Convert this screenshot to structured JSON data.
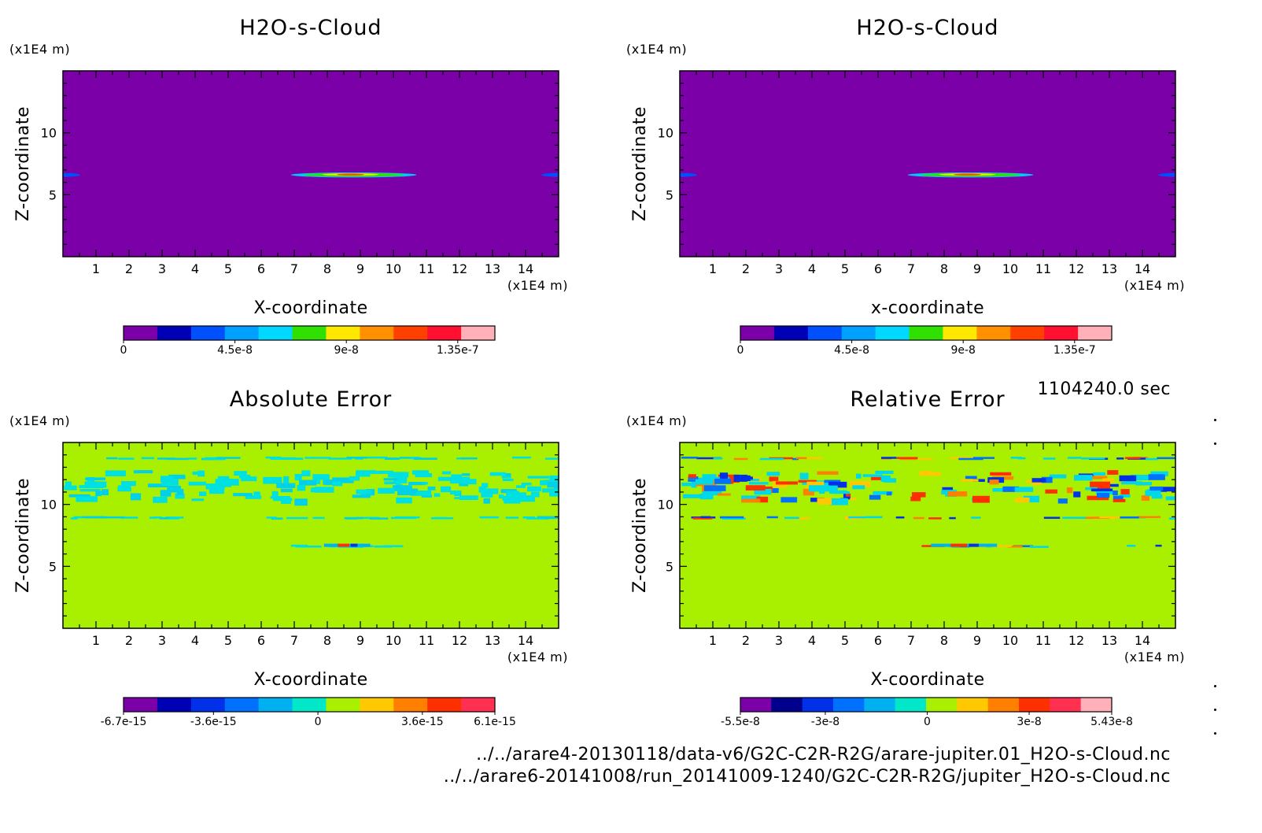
{
  "timestamp": "1104240.0 sec",
  "footer": {
    "file1": "../../arare4-20130118/data-v6/G2C-C2R-R2G/arare-jupiter.01_H2O-s-Cloud.nc",
    "file2": "../../arare6-20141008/run_20141009-1240/G2C-C2R-R2G/jupiter_H2O-s-Cloud.nc"
  },
  "chart_data": [
    {
      "type": "heatmap",
      "title": "H2O-s-Cloud",
      "xlabel": "X-coordinate",
      "ylabel": "Z-coordinate",
      "x_unit": "(x1E4 m)",
      "y_unit": "(x1E4 m)",
      "xlim": [
        0,
        15
      ],
      "ylim": [
        0,
        15
      ],
      "x_ticks": [
        1,
        2,
        3,
        4,
        5,
        6,
        7,
        8,
        9,
        10,
        11,
        12,
        13,
        14
      ],
      "y_ticks": [
        5,
        10
      ],
      "background_color": "#7b00a8",
      "features": [
        {
          "kind": "lens",
          "x_center": 8.8,
          "x_halfwidth": 1.9,
          "z": 6.6,
          "z_halfheight": 0.12
        },
        {
          "kind": "edge",
          "x": 0,
          "z": 6.6
        },
        {
          "kind": "edge",
          "x": 15,
          "z": 6.6
        }
      ],
      "colorbar": {
        "colors": [
          "#7b00a8",
          "#0000b4",
          "#0050ff",
          "#00a0ff",
          "#00d8ff",
          "#30e000",
          "#ffe800",
          "#ff9000",
          "#ff4000",
          "#ff1030",
          "#ffb0b8"
        ],
        "tick_labels": [
          "0",
          "4.5e-8",
          "9e-8",
          "1.35e-7"
        ],
        "tick_values": [
          0,
          4.5e-08,
          9e-08,
          1.35e-07
        ],
        "range": [
          0,
          1.5e-07
        ]
      }
    },
    {
      "type": "heatmap",
      "title": "H2O-s-Cloud",
      "xlabel": "x-coordinate",
      "ylabel": "Z-coordinate",
      "x_unit": "(x1E4 m)",
      "y_unit": "(x1E4 m)",
      "xlim": [
        0,
        15
      ],
      "ylim": [
        0,
        15
      ],
      "x_ticks": [
        1,
        2,
        3,
        4,
        5,
        6,
        7,
        8,
        9,
        10,
        11,
        12,
        13,
        14
      ],
      "y_ticks": [
        5,
        10
      ],
      "background_color": "#7b00a8",
      "features": [
        {
          "kind": "lens",
          "x_center": 8.8,
          "x_halfwidth": 1.9,
          "z": 6.6,
          "z_halfheight": 0.12
        },
        {
          "kind": "edge",
          "x": 0,
          "z": 6.6
        },
        {
          "kind": "edge",
          "x": 15,
          "z": 6.6
        }
      ],
      "colorbar": {
        "colors": [
          "#7b00a8",
          "#0000b4",
          "#0050ff",
          "#00a0ff",
          "#00d8ff",
          "#30e000",
          "#ffe800",
          "#ff9000",
          "#ff4000",
          "#ff1030",
          "#ffb0b8"
        ],
        "tick_labels": [
          "0",
          "4.5e-8",
          "9e-8",
          "1.35e-7"
        ],
        "tick_values": [
          0,
          4.5e-08,
          9e-08,
          1.35e-07
        ],
        "range": [
          0,
          1.5e-07
        ]
      }
    },
    {
      "type": "heatmap",
      "title": "Absolute Error",
      "xlabel": "X-coordinate",
      "ylabel": "Z-coordinate",
      "x_unit": "(x1E4 m)",
      "y_unit": "(x1E4 m)",
      "xlim": [
        0,
        15
      ],
      "ylim": [
        0,
        15
      ],
      "x_ticks": [
        1,
        2,
        3,
        4,
        5,
        6,
        7,
        8,
        9,
        10,
        11,
        12,
        13,
        14
      ],
      "y_ticks": [
        5,
        10
      ],
      "background_color": "#a8f000",
      "error_bands_z": [
        13.8,
        12.2,
        11.0,
        9.0,
        6.7
      ],
      "hot_spot": {
        "x_center": 8.6,
        "x_halfwidth": 0.7,
        "z": 6.7
      },
      "colorbar": {
        "colors": [
          "#7b00a8",
          "#0000b4",
          "#0030e8",
          "#0070ff",
          "#00b0f0",
          "#00e8c8",
          "#a8f000",
          "#ffc800",
          "#ff8000",
          "#ff3000",
          "#ff3050"
        ],
        "tick_labels": [
          "-6.7e-15",
          "-3.6e-15",
          "0",
          "3.6e-15",
          "6.1e-15"
        ],
        "tick_values": [
          -6.7e-15,
          -3.6e-15,
          0,
          3.6e-15,
          6.1e-15
        ],
        "range": [
          -6.7e-15,
          6.1e-15
        ]
      }
    },
    {
      "type": "heatmap",
      "title": "Relative Error",
      "xlabel": "X-coordinate",
      "ylabel": "Z-coordinate",
      "x_unit": "(x1E4 m)",
      "y_unit": "(x1E4 m)",
      "xlim": [
        0,
        15
      ],
      "ylim": [
        0,
        15
      ],
      "x_ticks": [
        1,
        2,
        3,
        4,
        5,
        6,
        7,
        8,
        9,
        10,
        11,
        12,
        13,
        14
      ],
      "y_ticks": [
        5,
        10
      ],
      "background_color": "#a8f000",
      "error_bands_z": [
        13.8,
        12.2,
        11.0,
        9.0,
        6.7
      ],
      "hot_spot": {
        "x_center": 8.6,
        "x_halfwidth": 1.0,
        "z": 6.7
      },
      "colorbar": {
        "colors": [
          "#7b00a8",
          "#00008c",
          "#0030e8",
          "#0070ff",
          "#00b0f0",
          "#00e8c8",
          "#a8f000",
          "#ffc800",
          "#ff8000",
          "#ff3000",
          "#ff3050",
          "#ffb0b8"
        ],
        "tick_labels": [
          "-5.5e-8",
          "-3e-8",
          "0",
          "3e-8",
          "5.43e-8"
        ],
        "tick_values": [
          -5.5e-08,
          -3e-08,
          0,
          3e-08,
          5.43e-08
        ],
        "range": [
          -5.5e-08,
          5.43e-08
        ]
      }
    }
  ]
}
